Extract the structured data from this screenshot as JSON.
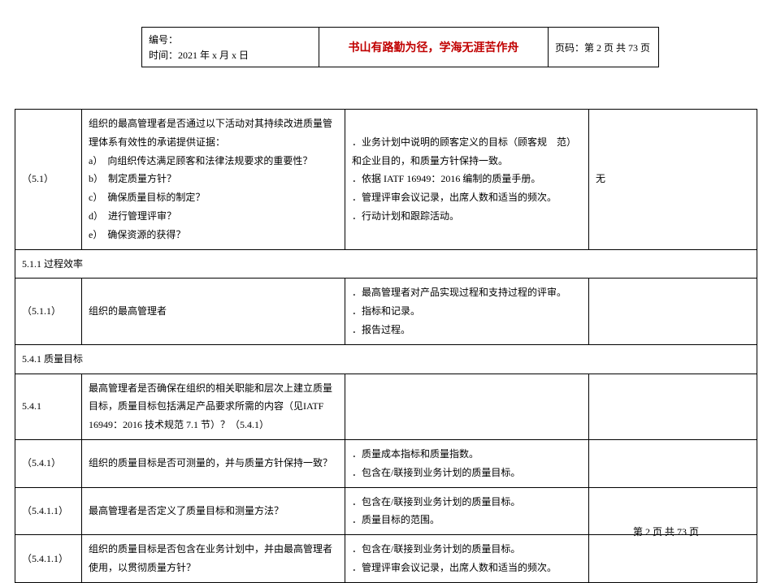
{
  "header": {
    "doc_no_label": "编号：",
    "date_line": "时间：2021 年 x 月 x 日",
    "motto": "书山有路勤为径，学海无涯苦作舟",
    "page_label": "页码：第 2 页 共 73 页"
  },
  "rows": [
    {
      "id": "（5.1）",
      "question": "组织的最高管理者是否通过以下活动对其持续改进质量管理体系有效性的承诺提供证据：\na）  向组织传达满足顾客和法律法规要求的重要性？\nb）  制定质量方针？\nc）  确保质量目标的制定？\nd）  进行管理评审？\ne）  确保资源的获得？",
      "evidence": "．业务计划中说明的顾客定义的目标（顾客规    范）和企业目的，和质量方针保持一致。\n．依据 IATF 16949：2016 编制的质量手册。\n．管理评审会议记录，出席人数和适当的频次。\n．行动计划和跟踪活动。",
      "result": "无"
    },
    {
      "section": "5.1.1 过程效率"
    },
    {
      "id": "（5.1.1）",
      "question": "组织的最高管理者",
      "evidence": "．最高管理者对产品实现过程和支持过程的评审。\n．指标和记录。\n．报告过程。",
      "result": ""
    },
    {
      "section": "5.4.1 质量目标"
    },
    {
      "id": "5.4.1",
      "question": "最高管理者是否确保在组织的相关职能和层次上建立质量目标，质量目标包括满足产品要求所需的内容（见IATF 16949：2016 技术规范 7.1 节）？（5.4.1）",
      "evidence": "",
      "result": ""
    },
    {
      "id": "（5.4.1）",
      "question": "组织的质量目标是否可测量的，并与质量方针保持一致？",
      "evidence": "．质量成本指标和质量指数。\n．包含在/联接到业务计划的质量目标。",
      "result": ""
    },
    {
      "id": "（5.4.1.1）",
      "question": "最高管理者是否定义了质量目标和测量方法？",
      "evidence": "．包含在/联接到业务计划的质量目标。\n．质量目标的范围。",
      "result": ""
    },
    {
      "id": "（5.4.1.1）",
      "question": "组织的质量目标是否包含在业务计划中，并由最高管理者使用，以贯彻质量方针？",
      "evidence": "．包含在/联接到业务计划的质量目标。\n．管理评审会议记录，出席人数和适当的频次。",
      "result": ""
    }
  ],
  "footer": "第  2  页  共  73  页"
}
